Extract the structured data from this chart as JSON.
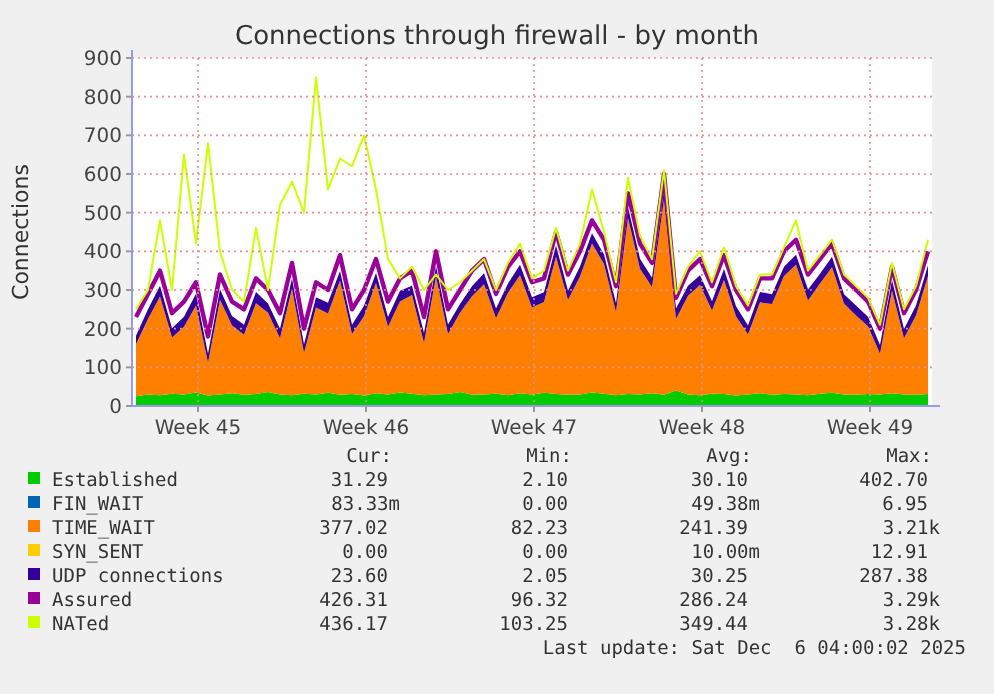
{
  "chart_data": {
    "type": "area",
    "stacked": true,
    "title": "Connections through firewall - by month",
    "ylabel": "Connections",
    "legend": "bottom",
    "grid": true,
    "line_style": "solid",
    "xlim": [
      "2025-11-02T20:00",
      "2025-12-06T04:00"
    ],
    "xticks": [
      {
        "value": "2025-11-05T14:00",
        "label": "Week 45"
      },
      {
        "value": "2025-11-12T14:00",
        "label": "Week 46"
      },
      {
        "value": "2025-11-19T14:00",
        "label": "Week 47"
      },
      {
        "value": "2025-11-26T14:00",
        "label": "Week 48"
      },
      {
        "value": "2025-12-03T14:00",
        "label": "Week 49"
      }
    ],
    "ylim": [
      0,
      900
    ],
    "yticks": [
      0,
      100,
      200,
      300,
      400,
      500,
      600,
      700,
      800,
      900
    ],
    "x": [
      "2025-11-03T00:00",
      "2025-11-03T12:00",
      "2025-11-04T00:00",
      "2025-11-04T12:00",
      "2025-11-05T00:00",
      "2025-11-05T12:00",
      "2025-11-06T00:00",
      "2025-11-06T12:00",
      "2025-11-07T00:00",
      "2025-11-07T12:00",
      "2025-11-08T00:00",
      "2025-11-08T12:00",
      "2025-11-09T00:00",
      "2025-11-09T12:00",
      "2025-11-10T00:00",
      "2025-11-10T12:00",
      "2025-11-11T00:00",
      "2025-11-11T12:00",
      "2025-11-12T00:00",
      "2025-11-12T12:00",
      "2025-11-13T00:00",
      "2025-11-13T12:00",
      "2025-11-14T00:00",
      "2025-11-14T12:00",
      "2025-11-15T00:00",
      "2025-11-15T12:00",
      "2025-11-16T00:00",
      "2025-11-16T12:00",
      "2025-11-17T00:00",
      "2025-11-17T12:00",
      "2025-11-18T00:00",
      "2025-11-18T12:00",
      "2025-11-19T00:00",
      "2025-11-19T12:00",
      "2025-11-20T00:00",
      "2025-11-20T12:00",
      "2025-11-21T00:00",
      "2025-11-21T12:00",
      "2025-11-22T00:00",
      "2025-11-22T12:00",
      "2025-11-23T00:00",
      "2025-11-23T12:00",
      "2025-11-24T00:00",
      "2025-11-24T12:00",
      "2025-11-25T00:00",
      "2025-11-25T12:00",
      "2025-11-26T00:00",
      "2025-11-26T12:00",
      "2025-11-27T00:00",
      "2025-11-27T12:00",
      "2025-11-28T00:00",
      "2025-11-28T12:00",
      "2025-11-29T00:00",
      "2025-11-29T12:00",
      "2025-11-30T00:00",
      "2025-11-30T12:00",
      "2025-12-01T00:00",
      "2025-12-01T12:00",
      "2025-12-02T00:00",
      "2025-12-02T12:00",
      "2025-12-03T00:00",
      "2025-12-03T12:00",
      "2025-12-04T00:00",
      "2025-12-04T12:00",
      "2025-12-05T00:00",
      "2025-12-05T12:00",
      "2025-12-06T00:00"
    ],
    "series": [
      {
        "name": "Established",
        "color": "#00cc00",
        "values": [
          25,
          30,
          28,
          32,
          30,
          35,
          27,
          30,
          33,
          29,
          31,
          36,
          30,
          28,
          32,
          30,
          34,
          29,
          31,
          27,
          33,
          30,
          35,
          32,
          28,
          30,
          31,
          36,
          29,
          30,
          32,
          28,
          33,
          30,
          34,
          31,
          29,
          30,
          35,
          32,
          28,
          31,
          30,
          33,
          29,
          40,
          30,
          28,
          32,
          31,
          27,
          30,
          33,
          29,
          31,
          30,
          28,
          32,
          34,
          30,
          29,
          31,
          30,
          33,
          30,
          29,
          31
        ]
      },
      {
        "name": "FIN_WAIT",
        "color": "#0066b3",
        "values": [
          null,
          null,
          null,
          null,
          null,
          null,
          null,
          null,
          null,
          null,
          null,
          null,
          null,
          null,
          null,
          null,
          null,
          null,
          null,
          null,
          null,
          null,
          null,
          null,
          null,
          null,
          null,
          null,
          null,
          null,
          null,
          null,
          null,
          null,
          null,
          null,
          null,
          null,
          null,
          null,
          null,
          null,
          null,
          null,
          null,
          null,
          null,
          null,
          null,
          null,
          null,
          null,
          null,
          null,
          null,
          null,
          null,
          null,
          null,
          null,
          null,
          null,
          null,
          null,
          null,
          null,
          null
        ]
      },
      {
        "name": "TIME_WAIT",
        "color": "#ff8000",
        "values": [
          135,
          195,
          255,
          145,
          175,
          225,
          85,
          245,
          175,
          155,
          235,
          205,
          145,
          275,
          105,
          225,
          205,
          295,
          155,
          205,
          285,
          175,
          235,
          255,
          135,
          305,
          155,
          205,
          255,
          285,
          195,
          265,
          305,
          225,
          235,
          355,
          245,
          305,
          385,
          335,
          215,
          455,
          325,
          275,
          505,
          185,
          255,
          285,
          215,
          295,
          205,
          155,
          235,
          235,
          305,
          335,
          245,
          285,
          325,
          235,
          205,
          175,
          105,
          265,
          145,
          205,
          305
        ]
      },
      {
        "name": "SYN_SENT",
        "color": "#ffcc00",
        "values": [
          null,
          null,
          null,
          null,
          null,
          null,
          null,
          null,
          null,
          null,
          null,
          null,
          null,
          null,
          null,
          null,
          null,
          null,
          null,
          null,
          null,
          null,
          null,
          null,
          null,
          null,
          null,
          null,
          null,
          null,
          null,
          null,
          null,
          null,
          null,
          null,
          null,
          null,
          null,
          null,
          null,
          null,
          null,
          null,
          null,
          null,
          null,
          null,
          null,
          null,
          null,
          null,
          null,
          null,
          null,
          null,
          null,
          null,
          null,
          null,
          null,
          null,
          null,
          null,
          null,
          null,
          null
        ]
      },
      {
        "name": "UDP connections",
        "color": "#330099",
        "values": [
          22,
          25,
          28,
          24,
          26,
          30,
          23,
          27,
          25,
          26,
          29,
          24,
          25,
          27,
          23,
          26,
          28,
          25,
          24,
          27,
          26,
          25,
          28,
          24,
          26,
          27,
          25,
          23,
          26,
          28,
          25,
          24,
          27,
          26,
          25,
          29,
          24,
          26,
          27,
          25,
          23,
          28,
          26,
          24,
          25,
          27,
          26,
          25,
          24,
          28,
          26,
          23,
          27,
          25,
          24,
          26,
          28,
          25,
          27,
          24,
          26,
          25,
          23,
          27,
          24,
          26,
          28
        ]
      },
      {
        "name": "Assured",
        "color": "#990099",
        "type": "line",
        "values": [
          230,
          290,
          350,
          240,
          270,
          320,
          180,
          340,
          270,
          250,
          330,
          300,
          240,
          370,
          200,
          320,
          300,
          390,
          250,
          300,
          380,
          270,
          330,
          350,
          230,
          400,
          250,
          300,
          350,
          380,
          290,
          360,
          400,
          320,
          330,
          450,
          340,
          400,
          480,
          430,
          310,
          550,
          420,
          370,
          600,
          280,
          350,
          380,
          310,
          390,
          300,
          250,
          330,
          330,
          400,
          430,
          340,
          380,
          420,
          330,
          300,
          270,
          200,
          360,
          240,
          300,
          400
        ]
      },
      {
        "name": "NATed",
        "color": "#ccff00",
        "type": "line",
        "values": [
          250,
          300,
          480,
          300,
          650,
          420,
          680,
          400,
          300,
          270,
          460,
          300,
          520,
          580,
          500,
          850,
          560,
          640,
          620,
          700,
          560,
          380,
          330,
          360,
          300,
          340,
          300,
          320,
          350,
          380,
          300,
          370,
          420,
          330,
          350,
          460,
          350,
          420,
          560,
          450,
          320,
          590,
          440,
          380,
          610,
          290,
          360,
          400,
          320,
          410,
          310,
          260,
          340,
          340,
          410,
          480,
          350,
          390,
          430,
          340,
          310,
          280,
          210,
          370,
          250,
          310,
          430
        ]
      }
    ],
    "annotations": [
      "Cur:",
      "Min:",
      "Avg:",
      "Max:",
      "31.29",
      "2.10",
      "30.10",
      "402.70",
      "83.33m",
      "0.00",
      "49.38m",
      "6.95",
      "377.02",
      "82.23",
      "241.39",
      "3.21k",
      "0.00",
      "0.00",
      "10.00m",
      "12.91",
      "23.60",
      "2.05",
      "30.25",
      "287.38",
      "426.31",
      "96.32",
      "286.24",
      "3.29k",
      "436.17",
      "103.25",
      "349.44",
      "3.28k",
      "Last update: Sat Dec  6 04:00:02 2025"
    ]
  }
}
